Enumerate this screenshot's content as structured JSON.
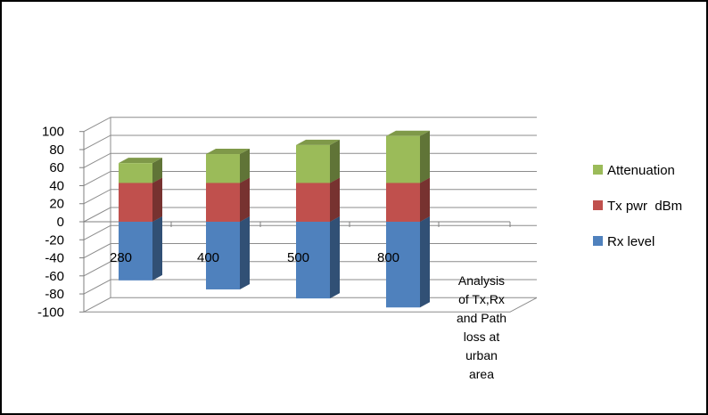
{
  "chart_data": {
    "type": "bar",
    "stacked": true,
    "three_d": true,
    "categories": [
      "280",
      "400",
      "500",
      "800"
    ],
    "series": [
      {
        "name": "Rx level",
        "values": [
          -65,
          -75,
          -85,
          -95
        ],
        "color": "#4f81bd"
      },
      {
        "name": "Tx pwr  dBm",
        "values": [
          43,
          43,
          43,
          43
        ],
        "color": "#c0504d"
      },
      {
        "name": "Attenuation",
        "values": [
          22,
          32,
          42,
          52
        ],
        "color": "#9bbb59"
      }
    ],
    "yticks": [
      "100",
      "80",
      "60",
      "40",
      "20",
      "0",
      "-20",
      "-40",
      "-60",
      "-80",
      "-100"
    ],
    "ylim": [
      -100,
      100
    ],
    "grid": true,
    "legend_position": "right",
    "annotation_lines": [
      "Analysis",
      "of Tx,Rx",
      "and Path",
      "loss  at",
      "urban",
      "area"
    ]
  }
}
